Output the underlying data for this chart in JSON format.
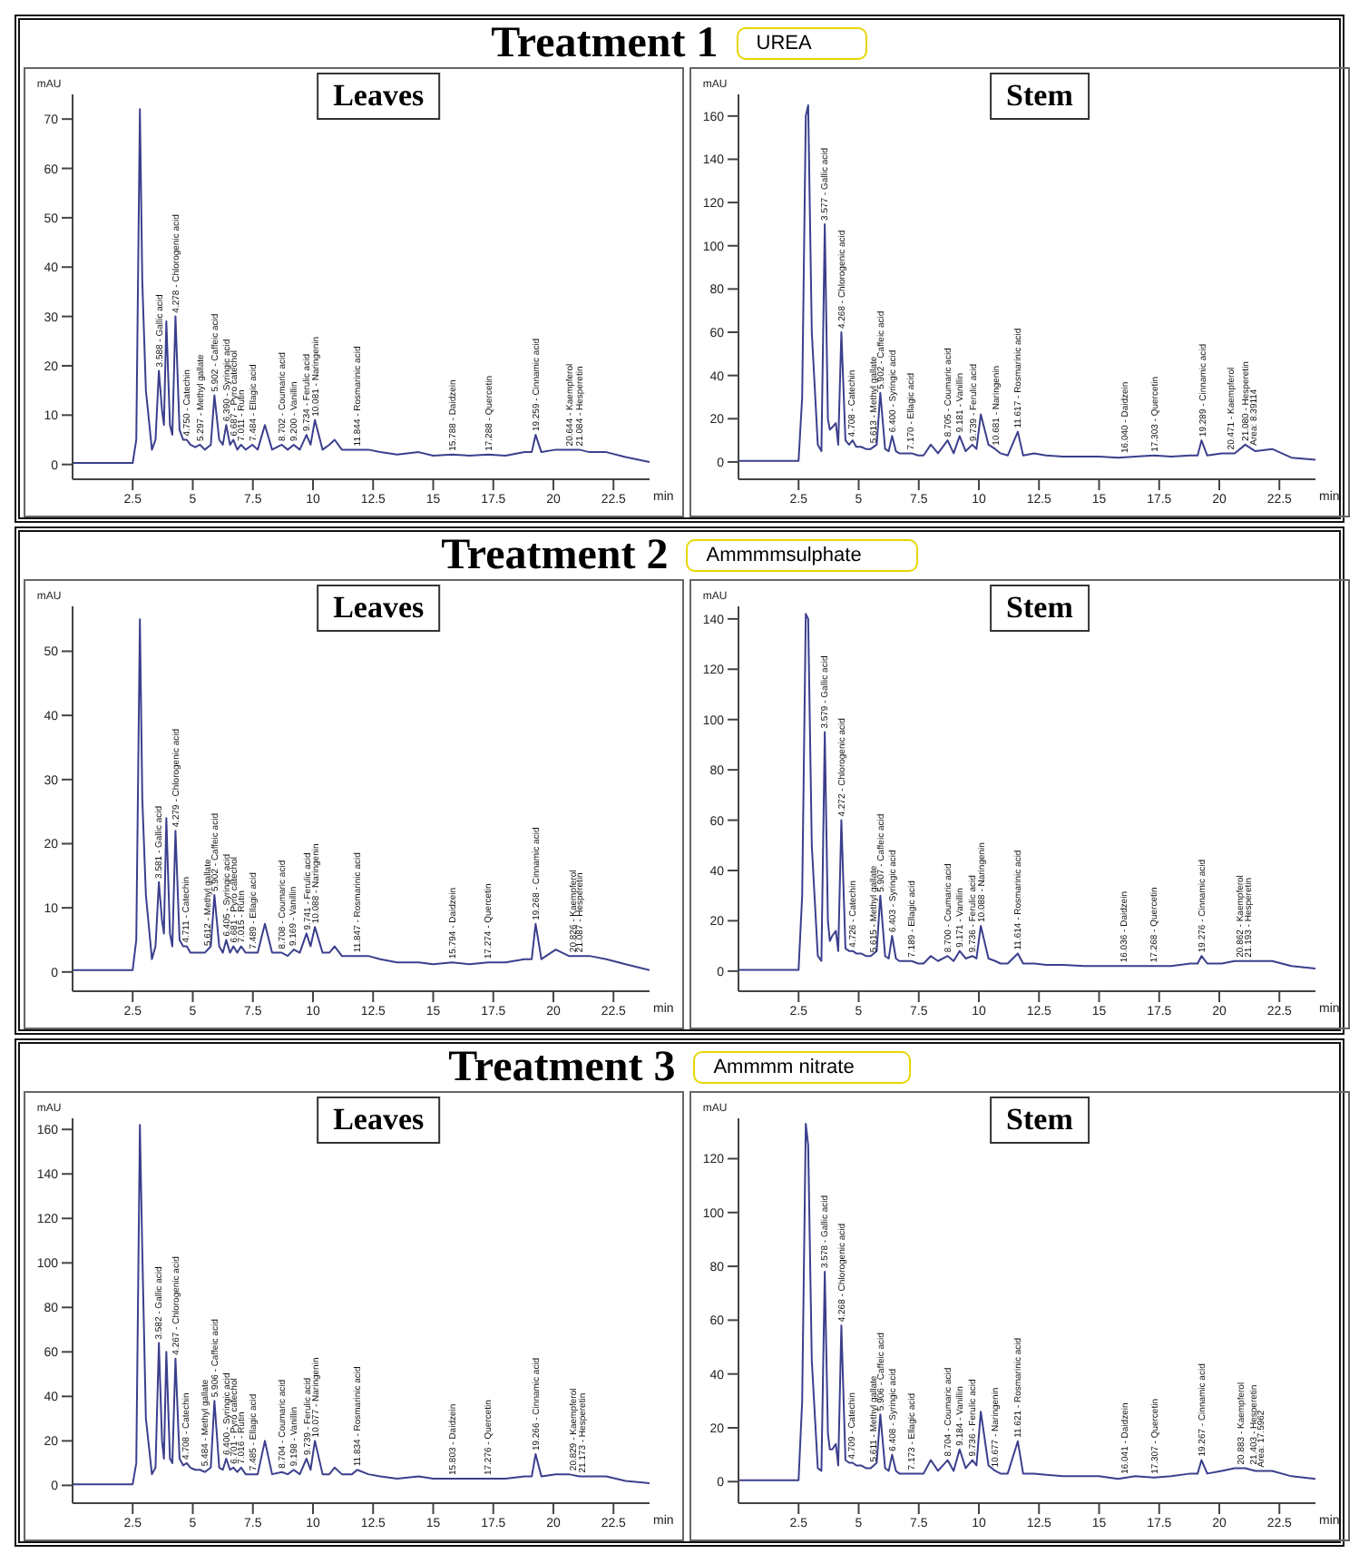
{
  "chart_data": [
    {
      "type": "line",
      "title": "Leaves",
      "xlabel": "min",
      "ylabel": "mAU",
      "color": "#3b3f8c",
      "xlim": [
        0,
        24
      ],
      "xticks": [
        2.5,
        5,
        7.5,
        10,
        12.5,
        15,
        17.5,
        20,
        22.5
      ],
      "ylim": [
        -3,
        75
      ],
      "yticks": [
        0,
        10,
        20,
        30,
        40,
        50,
        60,
        70
      ],
      "x": [
        0,
        2.5,
        2.65,
        2.8,
        2.9,
        3.05,
        3.3,
        3.45,
        3.59,
        3.72,
        3.8,
        3.9,
        4.05,
        4.15,
        4.28,
        4.45,
        4.6,
        4.75,
        4.9,
        5.1,
        5.3,
        5.5,
        5.75,
        5.9,
        6.1,
        6.25,
        6.39,
        6.55,
        6.69,
        6.85,
        7.01,
        7.2,
        7.48,
        7.7,
        8.0,
        8.3,
        8.7,
        8.95,
        9.2,
        9.45,
        9.73,
        9.9,
        10.08,
        10.4,
        10.68,
        10.9,
        11.2,
        11.62,
        11.84,
        12.3,
        12.8,
        13.5,
        14.4,
        15.0,
        15.79,
        16.5,
        17.29,
        18.0,
        18.8,
        19.1,
        19.26,
        19.5,
        20.1,
        20.64,
        21.08,
        21.5,
        22.2,
        23.0,
        24
      ],
      "values": [
        0.3,
        0.3,
        5,
        72,
        37,
        15,
        3,
        5,
        19,
        11,
        8,
        29,
        8,
        6,
        30,
        7,
        5,
        5,
        4,
        3.5,
        4,
        3,
        4,
        14,
        5,
        4,
        8,
        4,
        5,
        3,
        4,
        3,
        4,
        3,
        8,
        3,
        4,
        3,
        4,
        3,
        6,
        4,
        9,
        3,
        4,
        5,
        3,
        3,
        3,
        3,
        2.5,
        2,
        2.5,
        1.8,
        2,
        1.8,
        2,
        1.8,
        2.5,
        2.5,
        6,
        2.5,
        3,
        3,
        3,
        2.5,
        2.5,
        1.5,
        0.5
      ],
      "annotations": [
        "Treatment 1",
        "UREA",
        {
          "text": "3.588 - Gallic acid",
          "x": 3.588,
          "y": 19
        },
        {
          "text": "4.278 - Chlorogenic acid",
          "x": 4.278,
          "y": 30
        },
        {
          "text": "4.750 - Catechin",
          "x": 4.75,
          "y": 5
        },
        {
          "text": "5.297 - Methyl gallate",
          "x": 5.297,
          "y": 4
        },
        {
          "text": "5.902 - Caffeic acid",
          "x": 5.902,
          "y": 14
        },
        {
          "text": "6.390 - Syringic acid",
          "x": 6.39,
          "y": 8
        },
        {
          "text": "6.687 - Pyro catechol",
          "x": 6.687,
          "y": 5
        },
        {
          "text": "7.011 - Rutin",
          "x": 7.011,
          "y": 4
        },
        {
          "text": "7.484 - Ellagic acid",
          "x": 7.484,
          "y": 4
        },
        {
          "text": "8.702 - Coumaric acid",
          "x": 8.702,
          "y": 4
        },
        {
          "text": "9.200 - Vanillin",
          "x": 9.2,
          "y": 4
        },
        {
          "text": "9.734 - Ferulic acid",
          "x": 9.734,
          "y": 6
        },
        {
          "text": "10.081 - Naringenin",
          "x": 10.081,
          "y": 9
        },
        {
          "text": "11.844 - Rosmarinic acid",
          "x": 11.844,
          "y": 3
        },
        {
          "text": "15.788 - Daidzein",
          "x": 15.788,
          "y": 2
        },
        {
          "text": "17.288 - Quercetin",
          "x": 17.288,
          "y": 2
        },
        {
          "text": "19.259 - Cinnamic acid",
          "x": 19.259,
          "y": 6
        },
        {
          "text": "20.644 - Kaempferol",
          "x": 20.644,
          "y": 3
        },
        {
          "text": "21.084 - Hesperetin",
          "x": 21.084,
          "y": 3
        }
      ]
    },
    {
      "type": "line",
      "title": "Stem",
      "xlabel": "min",
      "ylabel": "mAU",
      "color": "#3b3f8c",
      "xlim": [
        0,
        24
      ],
      "xticks": [
        2.5,
        5,
        7.5,
        10,
        12.5,
        15,
        17.5,
        20,
        22.5
      ],
      "ylim": [
        -8,
        170
      ],
      "yticks": [
        0,
        20,
        40,
        60,
        80,
        100,
        120,
        140,
        160
      ],
      "x": [
        0,
        2.5,
        2.65,
        2.8,
        2.9,
        3.05,
        3.3,
        3.45,
        3.59,
        3.72,
        3.8,
        3.9,
        4.05,
        4.15,
        4.28,
        4.45,
        4.6,
        4.75,
        4.9,
        5.1,
        5.3,
        5.5,
        5.75,
        5.9,
        6.1,
        6.25,
        6.39,
        6.55,
        6.69,
        6.85,
        7.01,
        7.2,
        7.48,
        7.7,
        8.0,
        8.3,
        8.7,
        8.95,
        9.2,
        9.45,
        9.73,
        9.9,
        10.08,
        10.4,
        10.68,
        10.9,
        11.2,
        11.62,
        11.84,
        12.3,
        12.8,
        13.5,
        14.4,
        15.0,
        15.79,
        16.5,
        17.29,
        18.0,
        18.8,
        19.1,
        19.26,
        19.5,
        20.1,
        20.64,
        21.08,
        21.5,
        22.2,
        23.0,
        24
      ],
      "values": [
        0.5,
        0.5,
        30,
        160,
        165,
        60,
        8,
        5,
        110,
        20,
        15,
        16,
        18,
        8,
        60,
        10,
        8,
        10,
        7,
        7,
        6,
        6,
        8,
        32,
        6,
        5,
        12,
        5,
        4,
        4,
        4,
        4,
        3,
        3,
        8,
        4,
        10,
        4,
        12,
        5,
        8,
        6,
        22,
        8,
        6,
        4,
        3,
        14,
        3,
        4,
        3,
        2.5,
        2.5,
        2.5,
        2,
        2.5,
        3,
        2.5,
        3,
        3,
        10,
        3,
        4,
        4,
        8,
        5,
        6,
        2,
        1
      ],
      "annotations": [
        {
          "text": "3.577 - Gallic acid",
          "x": 3.577,
          "y": 110
        },
        {
          "text": "4.268 - Chlorogenic acid",
          "x": 4.268,
          "y": 60
        },
        {
          "text": "4.708 - Catechin",
          "x": 4.708,
          "y": 10
        },
        {
          "text": "5.613 - Methyl gallate",
          "x": 5.613,
          "y": 7
        },
        {
          "text": "5.902 - Caffeic acid",
          "x": 5.902,
          "y": 32
        },
        {
          "text": "6.400 - Syringic acid",
          "x": 6.4,
          "y": 12
        },
        {
          "text": "7.170 - Ellagic acid",
          "x": 7.17,
          "y": 4
        },
        {
          "text": "8.705 - Coumaric acid",
          "x": 8.705,
          "y": 10
        },
        {
          "text": "9.181 - Vanillin",
          "x": 9.181,
          "y": 12
        },
        {
          "text": "9.739 - Ferulic acid",
          "x": 9.739,
          "y": 8
        },
        {
          "text": "10.681 - Naringenin",
          "x": 10.681,
          "y": 6
        },
        {
          "text": "11.617 - Rosmarinic acid",
          "x": 11.617,
          "y": 14
        },
        {
          "text": "16.040 - Daidzein",
          "x": 16.04,
          "y": 2.5
        },
        {
          "text": "17.303 - Quercetin",
          "x": 17.303,
          "y": 3
        },
        {
          "text": "19.289 - Cinnamic acid",
          "x": 19.289,
          "y": 10
        },
        {
          "text": "20.471 - Kaempferol",
          "x": 20.471,
          "y": 4
        },
        {
          "text": "21.080 - Hesperetin",
          "x": 21.08,
          "y": 8
        },
        {
          "text": "Area: 8.39114",
          "x": 21.4,
          "y": 6
        }
      ]
    },
    {
      "type": "line",
      "title": "Leaves",
      "xlabel": "min",
      "ylabel": "mAU",
      "color": "#3b3f8c",
      "xlim": [
        0,
        24
      ],
      "xticks": [
        2.5,
        5,
        7.5,
        10,
        12.5,
        15,
        17.5,
        20,
        22.5
      ],
      "ylim": [
        -3,
        57
      ],
      "yticks": [
        0,
        10,
        20,
        30,
        40,
        50
      ],
      "x": [
        0,
        2.5,
        2.65,
        2.8,
        2.9,
        3.05,
        3.3,
        3.45,
        3.59,
        3.72,
        3.8,
        3.9,
        4.05,
        4.15,
        4.28,
        4.45,
        4.6,
        4.75,
        4.9,
        5.1,
        5.3,
        5.5,
        5.75,
        5.9,
        6.1,
        6.25,
        6.39,
        6.55,
        6.69,
        6.85,
        7.01,
        7.2,
        7.48,
        7.7,
        8.0,
        8.3,
        8.7,
        8.95,
        9.2,
        9.45,
        9.73,
        9.9,
        10.08,
        10.4,
        10.68,
        10.9,
        11.2,
        11.62,
        11.84,
        12.3,
        12.8,
        13.5,
        14.4,
        15.0,
        15.79,
        16.5,
        17.29,
        18.0,
        18.8,
        19.1,
        19.26,
        19.5,
        20.1,
        20.64,
        21.08,
        21.5,
        22.2,
        23.0,
        24
      ],
      "values": [
        0.3,
        0.3,
        5,
        55,
        27,
        12,
        2,
        4,
        14,
        8,
        6,
        24,
        6,
        4,
        22,
        5,
        4,
        4,
        3,
        3,
        3,
        3,
        4,
        12,
        4,
        3,
        5,
        3,
        4,
        3,
        4,
        3,
        3,
        3,
        7.5,
        3,
        3,
        2.5,
        3.5,
        3,
        6,
        4,
        7,
        3,
        3,
        4,
        2.5,
        2.5,
        2.5,
        2.5,
        2,
        1.5,
        1.5,
        1.2,
        1.5,
        1.2,
        1.5,
        1.5,
        2,
        2,
        7.5,
        2,
        3.5,
        2.5,
        2.5,
        2.5,
        2,
        1.2,
        0.3
      ],
      "annotations": [
        "Treatment 2",
        "Ammmmsulphate",
        {
          "text": "3.581 - Gallic acid",
          "x": 3.581,
          "y": 14
        },
        {
          "text": "4.279 - Chlorogenic acid",
          "x": 4.279,
          "y": 22
        },
        {
          "text": "4.711 - Catechin",
          "x": 4.711,
          "y": 4
        },
        {
          "text": "5.612 - Methyl gallate",
          "x": 5.612,
          "y": 3.5
        },
        {
          "text": "5.902 - Caffeic acid",
          "x": 5.902,
          "y": 12
        },
        {
          "text": "6.405 - Syringic acid",
          "x": 6.405,
          "y": 5
        },
        {
          "text": "6.681 - Pyro catechol",
          "x": 6.681,
          "y": 4
        },
        {
          "text": "7.015 - Rutin",
          "x": 7.015,
          "y": 4
        },
        {
          "text": "7.489 - Ellagic acid",
          "x": 7.489,
          "y": 3
        },
        {
          "text": "8.708 - Coumaric acid",
          "x": 8.708,
          "y": 3
        },
        {
          "text": "9.169 - Vanillin",
          "x": 9.169,
          "y": 3.5
        },
        {
          "text": "9.741 - Ferulic acid",
          "x": 9.741,
          "y": 6
        },
        {
          "text": "10.088 - Naringenin",
          "x": 10.088,
          "y": 7
        },
        {
          "text": "11.847 - Rosmarinic acid",
          "x": 11.847,
          "y": 2.5
        },
        {
          "text": "15.794 - Daidzein",
          "x": 15.794,
          "y": 1.5
        },
        {
          "text": "17.274 - Quercetin",
          "x": 17.274,
          "y": 1.5
        },
        {
          "text": "19.268 - Cinnamic acid",
          "x": 19.268,
          "y": 7.5
        },
        {
          "text": "20.826 - Kaempferol",
          "x": 20.826,
          "y": 2.5
        },
        {
          "text": "21.087 - Hesperetin",
          "x": 21.087,
          "y": 2.5
        }
      ]
    },
    {
      "type": "line",
      "title": "Stem",
      "xlabel": "min",
      "ylabel": "mAU",
      "color": "#3b3f8c",
      "xlim": [
        0,
        24
      ],
      "xticks": [
        2.5,
        5,
        7.5,
        10,
        12.5,
        15,
        17.5,
        20,
        22.5
      ],
      "ylim": [
        -8,
        145
      ],
      "yticks": [
        0,
        20,
        40,
        60,
        80,
        100,
        120,
        140
      ],
      "x": [
        0,
        2.5,
        2.65,
        2.8,
        2.9,
        3.05,
        3.3,
        3.45,
        3.59,
        3.72,
        3.8,
        3.9,
        4.05,
        4.15,
        4.28,
        4.45,
        4.6,
        4.75,
        4.9,
        5.1,
        5.3,
        5.5,
        5.75,
        5.9,
        6.1,
        6.25,
        6.39,
        6.55,
        6.69,
        6.85,
        7.01,
        7.2,
        7.48,
        7.7,
        8.0,
        8.3,
        8.7,
        8.95,
        9.2,
        9.45,
        9.73,
        9.9,
        10.08,
        10.4,
        10.68,
        10.9,
        11.2,
        11.62,
        11.84,
        12.3,
        12.8,
        13.5,
        14.4,
        15.0,
        15.79,
        16.5,
        17.29,
        18.0,
        18.8,
        19.1,
        19.26,
        19.5,
        20.1,
        20.64,
        21.08,
        21.5,
        22.2,
        23.0,
        24
      ],
      "values": [
        0.5,
        0.5,
        30,
        142,
        140,
        50,
        6,
        4,
        95,
        20,
        12,
        14,
        16,
        8,
        60,
        9,
        8,
        8,
        7,
        7,
        6,
        6,
        8,
        30,
        6,
        5,
        14,
        5,
        4,
        4,
        4,
        4,
        3,
        3,
        6,
        4,
        6,
        4,
        8,
        5,
        6,
        5,
        18,
        5,
        4,
        3,
        3,
        7,
        3,
        3,
        2.5,
        2.5,
        2,
        2,
        2,
        2,
        2,
        2,
        3,
        3,
        6,
        3,
        3,
        4,
        4,
        4,
        4,
        2,
        1
      ],
      "annotations": [
        {
          "text": "3.579 - Gallic acid",
          "x": 3.579,
          "y": 95
        },
        {
          "text": "4.272 - Chlorogenic acid",
          "x": 4.272,
          "y": 60
        },
        {
          "text": "4.726 - Catechin",
          "x": 4.726,
          "y": 8
        },
        {
          "text": "5.615 - Methyl gallate",
          "x": 5.615,
          "y": 6
        },
        {
          "text": "5.907 - Caffeic acid",
          "x": 5.907,
          "y": 30
        },
        {
          "text": "6.403 - Syringic acid",
          "x": 6.403,
          "y": 14
        },
        {
          "text": "7.189 - Ellagic acid",
          "x": 7.189,
          "y": 4
        },
        {
          "text": "8.700 - Coumaric acid",
          "x": 8.7,
          "y": 6
        },
        {
          "text": "9.171 - Vanillin",
          "x": 9.171,
          "y": 8
        },
        {
          "text": "9.736 - Ferulic acid",
          "x": 9.736,
          "y": 6
        },
        {
          "text": "10.088 - Naringenin",
          "x": 10.088,
          "y": 18
        },
        {
          "text": "11.614 - Rosmarinic acid",
          "x": 11.614,
          "y": 7
        },
        {
          "text": "16.036 - Daidzein",
          "x": 16.036,
          "y": 2
        },
        {
          "text": "17.268 - Quercetin",
          "x": 17.268,
          "y": 2
        },
        {
          "text": "19.276 - Cinnamic acid",
          "x": 19.276,
          "y": 6
        },
        {
          "text": "20.862 - Kaempferol",
          "x": 20.862,
          "y": 4
        },
        {
          "text": "21.193 - Hesperetin",
          "x": 21.193,
          "y": 4
        }
      ]
    },
    {
      "type": "line",
      "title": "Leaves",
      "xlabel": "min",
      "ylabel": "mAU",
      "color": "#3b3f8c",
      "xlim": [
        0,
        24
      ],
      "xticks": [
        2.5,
        5,
        7.5,
        10,
        12.5,
        15,
        17.5,
        20,
        22.5
      ],
      "ylim": [
        -8,
        165
      ],
      "yticks": [
        0,
        20,
        40,
        60,
        80,
        100,
        120,
        140,
        160
      ],
      "x": [
        0,
        2.5,
        2.65,
        2.8,
        2.9,
        3.05,
        3.3,
        3.45,
        3.59,
        3.72,
        3.8,
        3.9,
        4.05,
        4.15,
        4.28,
        4.45,
        4.6,
        4.75,
        4.9,
        5.1,
        5.3,
        5.5,
        5.75,
        5.9,
        6.1,
        6.25,
        6.39,
        6.55,
        6.69,
        6.85,
        7.01,
        7.2,
        7.48,
        7.7,
        8.0,
        8.3,
        8.7,
        8.95,
        9.2,
        9.45,
        9.73,
        9.9,
        10.08,
        10.4,
        10.68,
        10.9,
        11.2,
        11.62,
        11.84,
        12.3,
        12.8,
        13.5,
        14.4,
        15.0,
        15.79,
        16.5,
        17.29,
        18.0,
        18.8,
        19.1,
        19.26,
        19.5,
        20.1,
        20.64,
        21.08,
        21.5,
        22.2,
        23.0,
        24
      ],
      "values": [
        0.5,
        0.5,
        10,
        162,
        105,
        30,
        5,
        8,
        64,
        20,
        12,
        60,
        12,
        10,
        57,
        12,
        9,
        10,
        8,
        7,
        7,
        6,
        8,
        38,
        8,
        7,
        12,
        7,
        8,
        6,
        8,
        5,
        5,
        5,
        20,
        5,
        6,
        5,
        7,
        5,
        12,
        7,
        20,
        5,
        5,
        8,
        5,
        5,
        7,
        5,
        4,
        3,
        4,
        3,
        3,
        3,
        3,
        3,
        4,
        4,
        14,
        4,
        5,
        5,
        4,
        4,
        4,
        2,
        1
      ],
      "annotations": [
        "Treatment 3",
        "Ammmm nitrate",
        {
          "text": "3.582 - Gallic acid",
          "x": 3.582,
          "y": 64
        },
        {
          "text": "4.267 - Chlorogenic acid",
          "x": 4.267,
          "y": 57
        },
        {
          "text": "4.708 - Catechin",
          "x": 4.708,
          "y": 10
        },
        {
          "text": "5.484 - Methyl gallate",
          "x": 5.484,
          "y": 7
        },
        {
          "text": "5.906 - Caffeic acid",
          "x": 5.906,
          "y": 38
        },
        {
          "text": "6.400 - Syringic acid",
          "x": 6.4,
          "y": 12
        },
        {
          "text": "6.701 - Pyro catechol",
          "x": 6.701,
          "y": 8
        },
        {
          "text": "7.016 - Rutin",
          "x": 7.016,
          "y": 8
        },
        {
          "text": "7.485 - Ellagic acid",
          "x": 7.485,
          "y": 5
        },
        {
          "text": "8.704 - Coumaric acid",
          "x": 8.704,
          "y": 6
        },
        {
          "text": "9.198 - Vanillin",
          "x": 9.198,
          "y": 7
        },
        {
          "text": "9.739 - Ferulic acid",
          "x": 9.739,
          "y": 12
        },
        {
          "text": "10.077 - Naringenin",
          "x": 10.077,
          "y": 20
        },
        {
          "text": "11.834 - Rosmarinic acid",
          "x": 11.834,
          "y": 7
        },
        {
          "text": "15.803 - Daidzein",
          "x": 15.803,
          "y": 3
        },
        {
          "text": "17.276 - Quercetin",
          "x": 17.276,
          "y": 3
        },
        {
          "text": "19.266 - Cinnamic acid",
          "x": 19.266,
          "y": 14
        },
        {
          "text": "20.829 - Kaempferol",
          "x": 20.829,
          "y": 5
        },
        {
          "text": "21.173 - Hesperetin",
          "x": 21.173,
          "y": 4
        }
      ]
    },
    {
      "type": "line",
      "title": "Stem",
      "xlabel": "min",
      "ylabel": "mAU",
      "color": "#3b3f8c",
      "xlim": [
        0,
        24
      ],
      "xticks": [
        2.5,
        5,
        7.5,
        10,
        12.5,
        15,
        17.5,
        20,
        22.5
      ],
      "ylim": [
        -8,
        135
      ],
      "yticks": [
        0,
        20,
        40,
        60,
        80,
        100,
        120
      ],
      "x": [
        0,
        2.5,
        2.65,
        2.8,
        2.9,
        3.05,
        3.3,
        3.45,
        3.59,
        3.72,
        3.8,
        3.9,
        4.05,
        4.15,
        4.28,
        4.45,
        4.6,
        4.75,
        4.9,
        5.1,
        5.3,
        5.5,
        5.75,
        5.9,
        6.1,
        6.25,
        6.39,
        6.55,
        6.69,
        6.85,
        7.01,
        7.2,
        7.48,
        7.7,
        8.0,
        8.3,
        8.7,
        8.95,
        9.2,
        9.45,
        9.73,
        9.9,
        10.08,
        10.4,
        10.68,
        10.9,
        11.2,
        11.62,
        11.84,
        12.3,
        12.8,
        13.5,
        14.4,
        15.0,
        15.79,
        16.5,
        17.29,
        18.0,
        18.8,
        19.1,
        19.26,
        19.5,
        20.1,
        20.64,
        21.08,
        21.5,
        22.2,
        23.0,
        24
      ],
      "values": [
        0.5,
        0.5,
        30,
        133,
        125,
        45,
        5,
        4,
        78,
        18,
        12,
        12,
        14,
        6,
        58,
        8,
        7,
        7,
        6,
        6,
        5,
        5,
        7,
        25,
        5,
        4,
        10,
        4,
        3,
        3,
        3,
        3,
        3,
        3,
        8,
        4,
        8,
        4,
        12,
        5,
        8,
        6,
        26,
        6,
        4,
        3,
        3,
        15,
        3,
        3,
        2.5,
        2,
        2,
        2,
        1,
        2,
        1.5,
        2,
        3,
        3,
        8,
        3,
        4,
        5,
        5,
        4,
        4,
        2,
        1
      ],
      "annotations": [
        {
          "text": "3.578 - Gallic acid",
          "x": 3.578,
          "y": 78
        },
        {
          "text": "4.268 - Chlorogenic acid",
          "x": 4.268,
          "y": 58
        },
        {
          "text": "4.709 - Catechin",
          "x": 4.709,
          "y": 7
        },
        {
          "text": "5.611 - Methyl gallate",
          "x": 5.611,
          "y": 6
        },
        {
          "text": "5.906 - Caffeic acid",
          "x": 5.906,
          "y": 25
        },
        {
          "text": "6.408 - Syringic acid",
          "x": 6.408,
          "y": 10
        },
        {
          "text": "7.173 - Ellagic acid",
          "x": 7.173,
          "y": 3
        },
        {
          "text": "8.704 - Coumaric acid",
          "x": 8.704,
          "y": 8
        },
        {
          "text": "9.184 - Vanillin",
          "x": 9.184,
          "y": 12
        },
        {
          "text": "9.736 - Ferulic acid",
          "x": 9.736,
          "y": 8
        },
        {
          "text": "10.677 - Naringenin",
          "x": 10.677,
          "y": 4
        },
        {
          "text": "11.621 - Rosmarinic acid",
          "x": 11.621,
          "y": 15
        },
        {
          "text": "16.041 - Daidzein",
          "x": 16.041,
          "y": 1.5
        },
        {
          "text": "17.307 - Quercetin",
          "x": 17.307,
          "y": 1.5
        },
        {
          "text": "19.267 - Cinnamic acid",
          "x": 19.267,
          "y": 8
        },
        {
          "text": "20.883 - Kaempferol",
          "x": 20.883,
          "y": 5
        },
        {
          "text": "21.403 - Hesperetin",
          "x": 21.403,
          "y": 5
        },
        {
          "text": "Area: 17.5962",
          "x": 21.7,
          "y": 4
        }
      ]
    }
  ]
}
